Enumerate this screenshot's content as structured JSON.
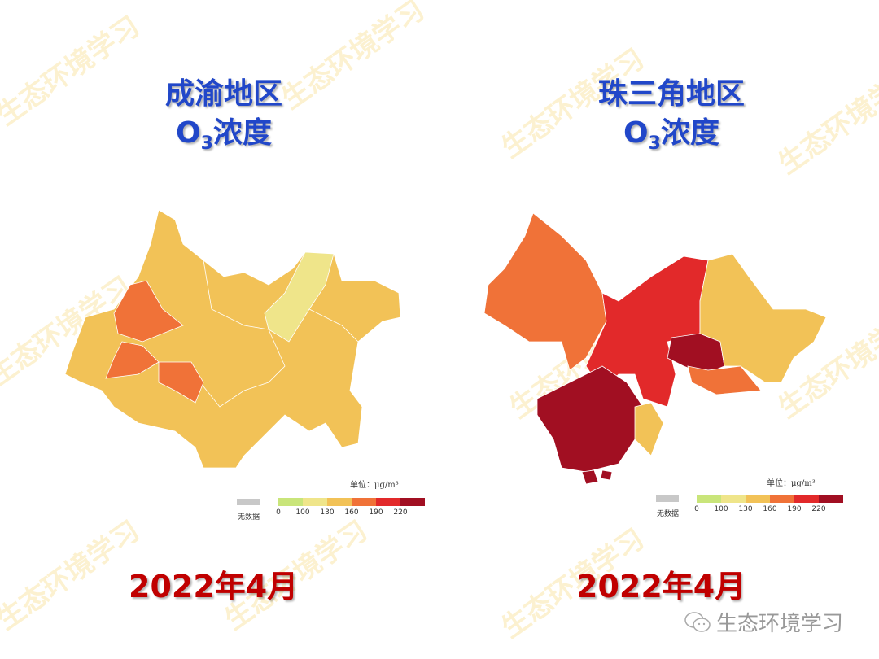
{
  "watermark": "生态环境学习",
  "left": {
    "title_line1": "成渝地区",
    "title_o": "O",
    "title_sub": "3",
    "title_rest": "浓度",
    "date": "2022年4月"
  },
  "right": {
    "title_line1": "珠三角地区",
    "title_o": "O",
    "title_sub": "3",
    "title_rest": "浓度",
    "date": "2022年4月"
  },
  "legend": {
    "unit": "单位：μg/m³",
    "nodata": "无数据",
    "ticks": [
      "0",
      "100",
      "130",
      "160",
      "190",
      "220"
    ],
    "colors": [
      "#c9e57a",
      "#efe58a",
      "#f2c257",
      "#f07238",
      "#e2292a",
      "#a10f22"
    ],
    "nodata_color": "#c8c8c8"
  },
  "brand": {
    "icon": "wechat-icon",
    "text": "生态环境学习"
  }
}
